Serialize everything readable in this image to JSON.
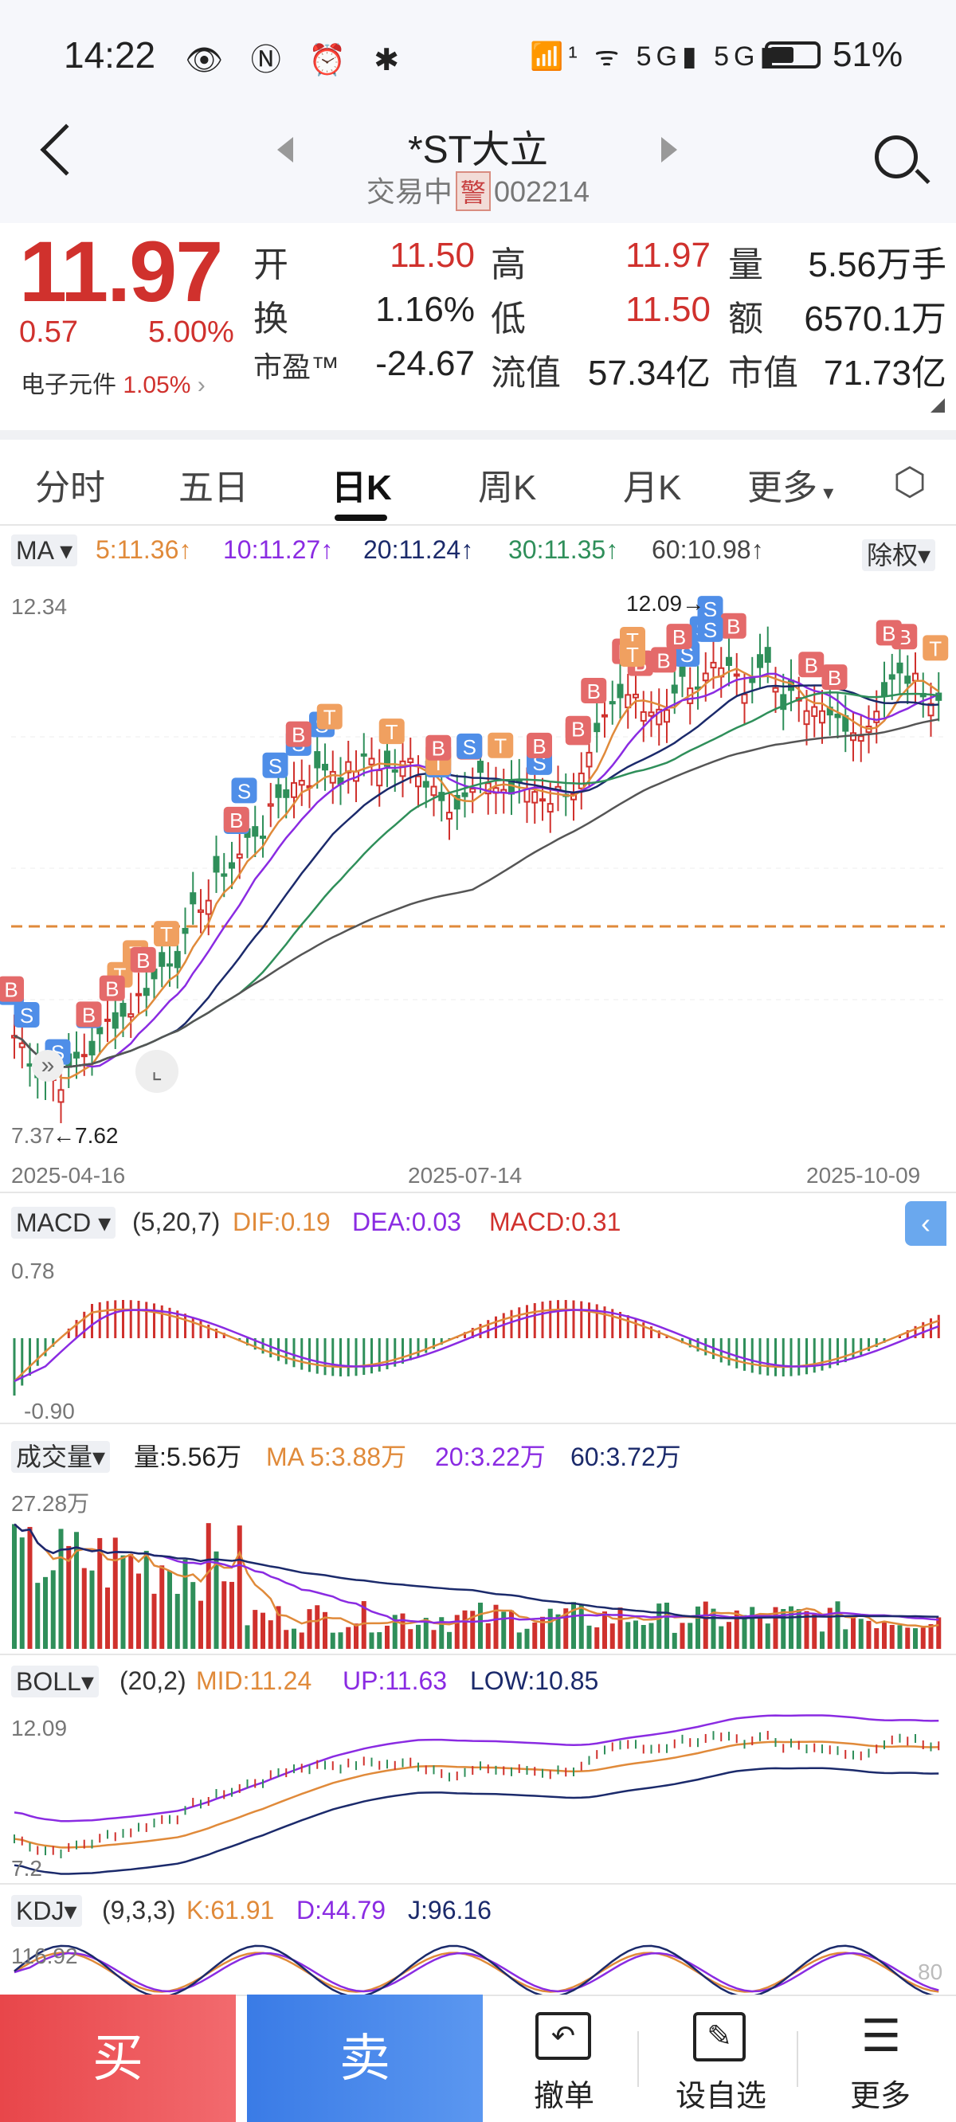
{
  "status_bar": {
    "time": "14:22",
    "icons": "👁 Ⓝ ⏰ ✱",
    "right_icons": "📶¹ ᯤ 5G▮ 5G▮",
    "battery_pct": "51%",
    "battery_level": 0.51
  },
  "header": {
    "title": "*ST大立",
    "status": "交易中",
    "warn": "警",
    "code": "002214"
  },
  "quote": {
    "price": "11.97",
    "change": "0.57",
    "change_pct": "5.00%",
    "sector": "电子元件",
    "sector_pct": "1.05%",
    "cells": [
      {
        "label": "开",
        "value": "11.50",
        "red": true
      },
      {
        "label": "高",
        "value": "11.97",
        "red": true
      },
      {
        "label": "量",
        "value": "5.56万手",
        "red": false
      },
      {
        "label": "换",
        "value": "1.16%",
        "red": false
      },
      {
        "label": "低",
        "value": "11.50",
        "red": true
      },
      {
        "label": "额",
        "value": "6570.1万",
        "red": false
      },
      {
        "label": "市盈™",
        "value": "-24.67",
        "red": false
      },
      {
        "label": "流值",
        "value": "57.34亿",
        "red": false
      },
      {
        "label": "市值",
        "value": "71.73亿",
        "red": false
      }
    ]
  },
  "tabs": [
    "分时",
    "五日",
    "日K",
    "周K",
    "月K",
    "更多"
  ],
  "active_tab": "日K",
  "ma_bar": {
    "label": "MA",
    "ma5": "5:11.36↑",
    "ma10": "10:11.27↑",
    "ma20": "20:11.24↑",
    "ma30": "30:11.35↑",
    "ma60": "60:10.98↑",
    "adjust": "除权"
  },
  "kline": {
    "y_max": "12.34",
    "y_min": "7.37",
    "high_mark": "12.09→",
    "low_mark": "←7.62",
    "dates": [
      "2025-04-16",
      "2025-07-14",
      "2025-10-09"
    ]
  },
  "macd": {
    "label": "MACD",
    "params": "(5,20,7)",
    "dif": "DIF:0.19",
    "dea": "DEA:0.03",
    "macd": "MACD:0.31",
    "y_max": "0.78",
    "y_min": "-0.90"
  },
  "volume": {
    "label": "成交量",
    "vol": "量:5.56万",
    "ma5": "MA 5:3.88万",
    "ma20": "20:3.22万",
    "ma60": "60:3.72万",
    "y_max": "27.28万"
  },
  "boll": {
    "label": "BOLL",
    "params": "(20,2)",
    "mid": "MID:11.24",
    "up": "UP:11.63",
    "low": "LOW:10.85",
    "y_max": "12.09",
    "y_min": "7.2"
  },
  "kdj": {
    "label": "KDJ",
    "params": "(9,3,3)",
    "k": "K:61.91",
    "d": "D:44.79",
    "j": "J:96.16",
    "y_max": "116.92",
    "right": "80"
  },
  "bottom": {
    "buy": "买",
    "sell": "卖",
    "cancel": "撤单",
    "watch": "设自选",
    "more": "更多"
  },
  "colors": {
    "red": "#d0312d",
    "green": "#2f8f5a",
    "orange": "#e08a3a",
    "purple": "#8a2be2",
    "navy": "#1b2a6b",
    "gray": "#555555"
  }
}
